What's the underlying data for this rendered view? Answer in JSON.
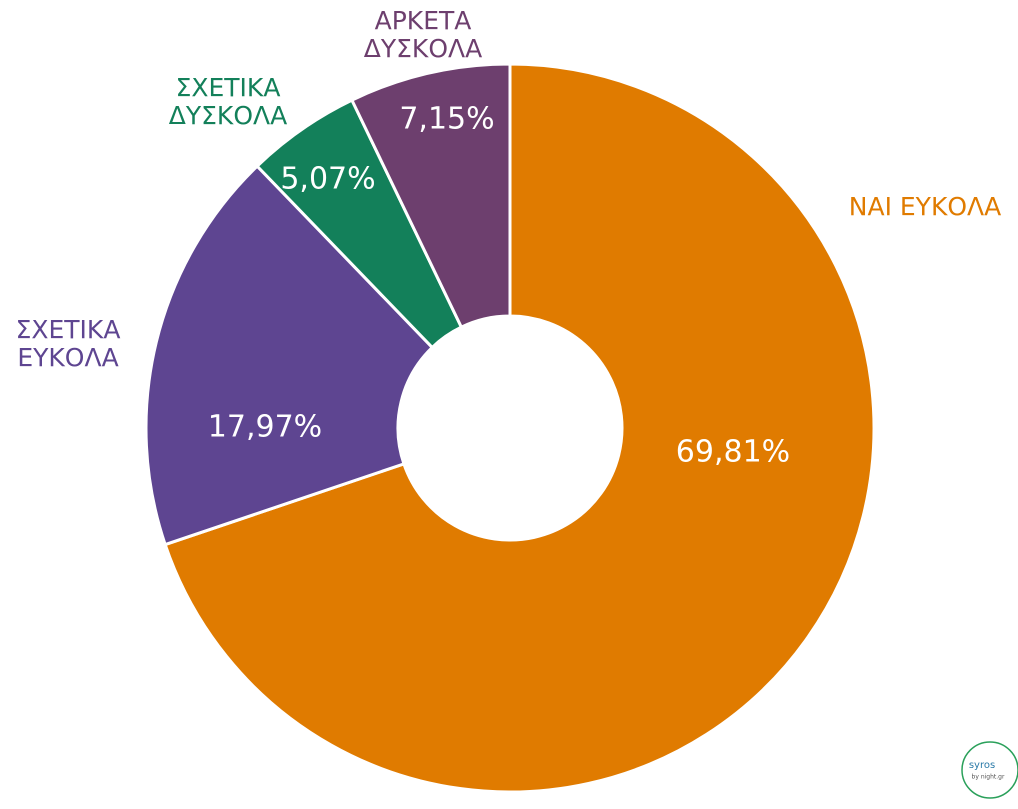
{
  "chart_data": {
    "type": "pie",
    "categories": [
      "ΝΑΙ ΕΥΚΟΛΑ",
      "ΣΧΕΤΙΚΑ ΕΥΚΟΛΑ",
      "ΣΧΕΤΙΚΑ ΔΥΣΚΟΛΑ",
      "ΑΡΚΕΤΑ ΔΥΣΚΟΛΑ"
    ],
    "values": [
      69.81,
      17.97,
      5.07,
      7.15
    ],
    "value_labels": [
      "69,81%",
      "17,97%",
      "5,07%",
      "7,15%"
    ],
    "colors": [
      "#e07b00",
      "#5e4591",
      "#13805a",
      "#6d3f6e"
    ],
    "logo": [
      "syros",
      "by night.gr"
    ]
  }
}
